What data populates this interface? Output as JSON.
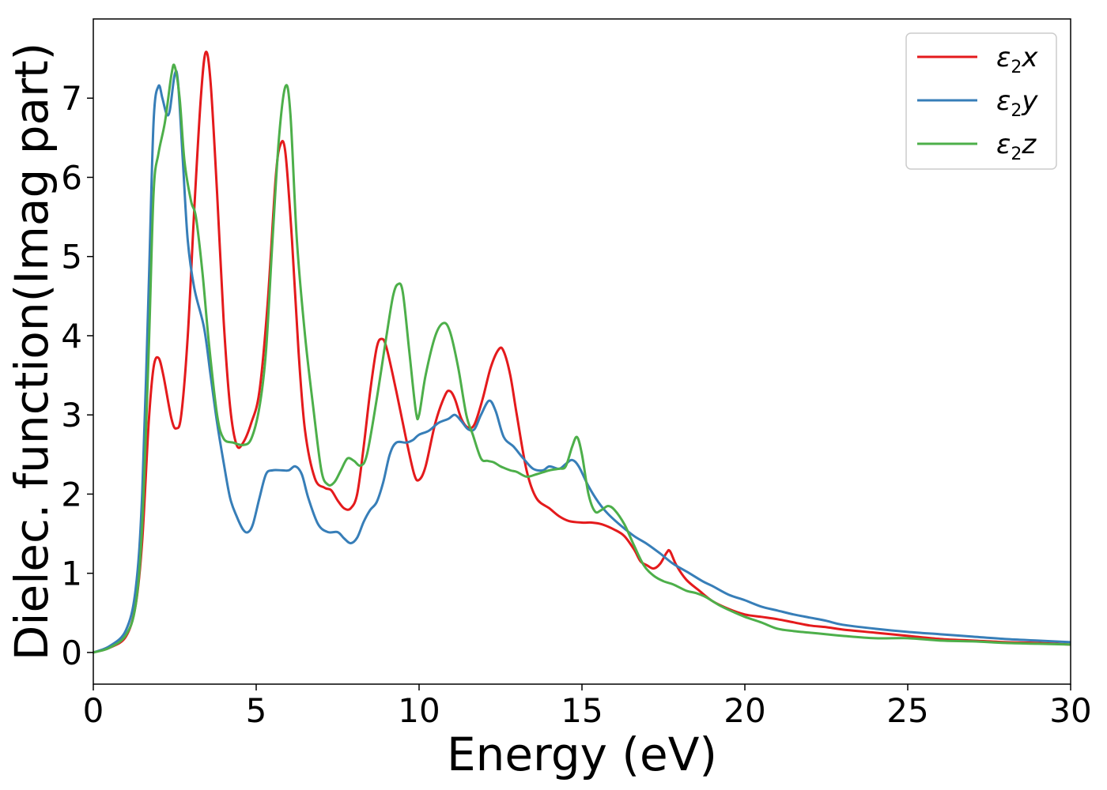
{
  "chart_data": {
    "type": "line",
    "xlabel": "Energy (eV)",
    "ylabel": "Dielec. function(Imag part)",
    "xlim": [
      0,
      30
    ],
    "ylim": [
      -0.4,
      8.0
    ],
    "xticks": [
      0,
      5,
      10,
      15,
      20,
      25,
      30
    ],
    "yticks": [
      0,
      1,
      2,
      3,
      4,
      5,
      6,
      7
    ],
    "grid": false,
    "legend_position": "top-right",
    "series": [
      {
        "name": "ε2x",
        "label_main": "ε",
        "label_sub": "2",
        "label_tail": "x",
        "color": "#e41a1c",
        "points": [
          [
            0,
            0
          ],
          [
            0.5,
            0.06
          ],
          [
            1.0,
            0.2
          ],
          [
            1.3,
            0.6
          ],
          [
            1.5,
            1.4
          ],
          [
            1.7,
            2.9
          ],
          [
            1.85,
            3.6
          ],
          [
            2.0,
            3.72
          ],
          [
            2.15,
            3.5
          ],
          [
            2.4,
            2.95
          ],
          [
            2.55,
            2.83
          ],
          [
            2.7,
            3.0
          ],
          [
            2.9,
            4.0
          ],
          [
            3.1,
            5.6
          ],
          [
            3.3,
            7.0
          ],
          [
            3.45,
            7.58
          ],
          [
            3.6,
            7.2
          ],
          [
            3.8,
            5.8
          ],
          [
            4.0,
            4.2
          ],
          [
            4.2,
            3.1
          ],
          [
            4.4,
            2.62
          ],
          [
            4.6,
            2.65
          ],
          [
            4.85,
            2.9
          ],
          [
            5.1,
            3.3
          ],
          [
            5.35,
            4.4
          ],
          [
            5.6,
            6.0
          ],
          [
            5.75,
            6.42
          ],
          [
            5.9,
            6.3
          ],
          [
            6.1,
            5.2
          ],
          [
            6.3,
            3.8
          ],
          [
            6.5,
            2.8
          ],
          [
            6.8,
            2.2
          ],
          [
            7.1,
            2.08
          ],
          [
            7.3,
            2.05
          ],
          [
            7.5,
            1.92
          ],
          [
            7.7,
            1.82
          ],
          [
            7.9,
            1.82
          ],
          [
            8.1,
            2.0
          ],
          [
            8.3,
            2.6
          ],
          [
            8.5,
            3.3
          ],
          [
            8.7,
            3.85
          ],
          [
            8.85,
            3.96
          ],
          [
            9.0,
            3.85
          ],
          [
            9.3,
            3.3
          ],
          [
            9.6,
            2.7
          ],
          [
            9.85,
            2.25
          ],
          [
            10.0,
            2.18
          ],
          [
            10.2,
            2.35
          ],
          [
            10.5,
            2.9
          ],
          [
            10.8,
            3.25
          ],
          [
            10.95,
            3.3
          ],
          [
            11.1,
            3.2
          ],
          [
            11.3,
            2.95
          ],
          [
            11.5,
            2.84
          ],
          [
            11.7,
            2.88
          ],
          [
            11.95,
            3.2
          ],
          [
            12.2,
            3.6
          ],
          [
            12.45,
            3.83
          ],
          [
            12.6,
            3.8
          ],
          [
            12.8,
            3.5
          ],
          [
            13.0,
            3.0
          ],
          [
            13.3,
            2.3
          ],
          [
            13.6,
            1.95
          ],
          [
            14.0,
            1.82
          ],
          [
            14.3,
            1.72
          ],
          [
            14.6,
            1.66
          ],
          [
            15.0,
            1.64
          ],
          [
            15.3,
            1.64
          ],
          [
            15.6,
            1.62
          ],
          [
            16.0,
            1.55
          ],
          [
            16.3,
            1.47
          ],
          [
            16.6,
            1.3
          ],
          [
            16.8,
            1.15
          ],
          [
            17.0,
            1.1
          ],
          [
            17.2,
            1.06
          ],
          [
            17.4,
            1.12
          ],
          [
            17.6,
            1.26
          ],
          [
            17.7,
            1.28
          ],
          [
            17.9,
            1.1
          ],
          [
            18.2,
            0.92
          ],
          [
            18.6,
            0.78
          ],
          [
            19.0,
            0.65
          ],
          [
            19.5,
            0.55
          ],
          [
            20.0,
            0.48
          ],
          [
            20.5,
            0.45
          ],
          [
            21.0,
            0.42
          ],
          [
            21.5,
            0.38
          ],
          [
            22.0,
            0.34
          ],
          [
            22.5,
            0.32
          ],
          [
            23.0,
            0.29
          ],
          [
            24.0,
            0.25
          ],
          [
            25.0,
            0.21
          ],
          [
            26.0,
            0.17
          ],
          [
            27.0,
            0.15
          ],
          [
            28.0,
            0.13
          ],
          [
            29.0,
            0.12
          ],
          [
            30.0,
            0.1
          ]
        ]
      },
      {
        "name": "ε2y",
        "label_main": "ε",
        "label_sub": "2",
        "label_tail": "y",
        "color": "#377eb8",
        "points": [
          [
            0,
            0
          ],
          [
            0.5,
            0.08
          ],
          [
            1.0,
            0.28
          ],
          [
            1.3,
            0.8
          ],
          [
            1.5,
            2.0
          ],
          [
            1.7,
            4.6
          ],
          [
            1.85,
            6.7
          ],
          [
            2.0,
            7.15
          ],
          [
            2.12,
            7.0
          ],
          [
            2.25,
            6.8
          ],
          [
            2.35,
            6.85
          ],
          [
            2.5,
            7.3
          ],
          [
            2.6,
            7.2
          ],
          [
            2.75,
            6.2
          ],
          [
            2.9,
            5.2
          ],
          [
            3.1,
            4.6
          ],
          [
            3.4,
            4.1
          ],
          [
            3.6,
            3.5
          ],
          [
            3.8,
            2.9
          ],
          [
            4.0,
            2.4
          ],
          [
            4.2,
            1.95
          ],
          [
            4.4,
            1.72
          ],
          [
            4.6,
            1.55
          ],
          [
            4.75,
            1.52
          ],
          [
            4.9,
            1.62
          ],
          [
            5.1,
            1.95
          ],
          [
            5.3,
            2.25
          ],
          [
            5.5,
            2.3
          ],
          [
            5.8,
            2.3
          ],
          [
            6.0,
            2.3
          ],
          [
            6.2,
            2.35
          ],
          [
            6.4,
            2.25
          ],
          [
            6.6,
            1.95
          ],
          [
            6.9,
            1.62
          ],
          [
            7.2,
            1.52
          ],
          [
            7.5,
            1.52
          ],
          [
            7.7,
            1.44
          ],
          [
            7.9,
            1.38
          ],
          [
            8.1,
            1.45
          ],
          [
            8.3,
            1.65
          ],
          [
            8.5,
            1.8
          ],
          [
            8.7,
            1.9
          ],
          [
            8.9,
            2.15
          ],
          [
            9.1,
            2.5
          ],
          [
            9.3,
            2.65
          ],
          [
            9.6,
            2.65
          ],
          [
            9.8,
            2.68
          ],
          [
            10.0,
            2.75
          ],
          [
            10.3,
            2.8
          ],
          [
            10.6,
            2.9
          ],
          [
            10.9,
            2.95
          ],
          [
            11.1,
            3.0
          ],
          [
            11.3,
            2.92
          ],
          [
            11.5,
            2.82
          ],
          [
            11.7,
            2.82
          ],
          [
            11.9,
            3.0
          ],
          [
            12.15,
            3.18
          ],
          [
            12.35,
            3.05
          ],
          [
            12.6,
            2.72
          ],
          [
            12.9,
            2.6
          ],
          [
            13.2,
            2.45
          ],
          [
            13.5,
            2.32
          ],
          [
            13.8,
            2.3
          ],
          [
            14.0,
            2.35
          ],
          [
            14.3,
            2.32
          ],
          [
            14.5,
            2.38
          ],
          [
            14.7,
            2.43
          ],
          [
            14.9,
            2.35
          ],
          [
            15.2,
            2.1
          ],
          [
            15.5,
            1.9
          ],
          [
            15.8,
            1.75
          ],
          [
            16.2,
            1.6
          ],
          [
            16.6,
            1.47
          ],
          [
            17.0,
            1.37
          ],
          [
            17.4,
            1.25
          ],
          [
            17.8,
            1.12
          ],
          [
            18.3,
            1.0
          ],
          [
            18.7,
            0.9
          ],
          [
            19.0,
            0.84
          ],
          [
            19.5,
            0.73
          ],
          [
            20.0,
            0.66
          ],
          [
            20.5,
            0.58
          ],
          [
            21.0,
            0.53
          ],
          [
            21.5,
            0.48
          ],
          [
            22.0,
            0.44
          ],
          [
            22.5,
            0.4
          ],
          [
            23.0,
            0.35
          ],
          [
            24.0,
            0.3
          ],
          [
            25.0,
            0.26
          ],
          [
            26.0,
            0.23
          ],
          [
            27.0,
            0.2
          ],
          [
            28.0,
            0.17
          ],
          [
            29.0,
            0.15
          ],
          [
            30.0,
            0.13
          ]
        ]
      },
      {
        "name": "ε2z",
        "label_main": "ε",
        "label_sub": "2",
        "label_tail": "z",
        "color": "#4daf4a",
        "points": [
          [
            0,
            0
          ],
          [
            0.5,
            0.06
          ],
          [
            1.0,
            0.22
          ],
          [
            1.3,
            0.6
          ],
          [
            1.5,
            1.6
          ],
          [
            1.7,
            3.8
          ],
          [
            1.85,
            5.8
          ],
          [
            2.0,
            6.3
          ],
          [
            2.2,
            6.7
          ],
          [
            2.4,
            7.3
          ],
          [
            2.5,
            7.4
          ],
          [
            2.65,
            7.0
          ],
          [
            2.8,
            6.2
          ],
          [
            3.0,
            5.7
          ],
          [
            3.15,
            5.5
          ],
          [
            3.35,
            4.8
          ],
          [
            3.55,
            3.9
          ],
          [
            3.8,
            3.0
          ],
          [
            4.0,
            2.7
          ],
          [
            4.3,
            2.65
          ],
          [
            4.6,
            2.62
          ],
          [
            4.85,
            2.7
          ],
          [
            5.1,
            3.1
          ],
          [
            5.3,
            3.8
          ],
          [
            5.5,
            5.2
          ],
          [
            5.7,
            6.5
          ],
          [
            5.9,
            7.15
          ],
          [
            6.05,
            6.8
          ],
          [
            6.25,
            5.2
          ],
          [
            6.5,
            4.0
          ],
          [
            6.75,
            3.1
          ],
          [
            7.0,
            2.3
          ],
          [
            7.2,
            2.12
          ],
          [
            7.4,
            2.15
          ],
          [
            7.6,
            2.3
          ],
          [
            7.8,
            2.45
          ],
          [
            8.0,
            2.42
          ],
          [
            8.2,
            2.36
          ],
          [
            8.4,
            2.5
          ],
          [
            8.7,
            3.2
          ],
          [
            9.0,
            4.0
          ],
          [
            9.2,
            4.5
          ],
          [
            9.35,
            4.65
          ],
          [
            9.5,
            4.55
          ],
          [
            9.7,
            3.8
          ],
          [
            9.9,
            3.05
          ],
          [
            10.0,
            3.0
          ],
          [
            10.2,
            3.5
          ],
          [
            10.5,
            4.0
          ],
          [
            10.75,
            4.16
          ],
          [
            10.95,
            4.05
          ],
          [
            11.2,
            3.6
          ],
          [
            11.45,
            3.0
          ],
          [
            11.65,
            2.75
          ],
          [
            11.9,
            2.45
          ],
          [
            12.1,
            2.42
          ],
          [
            12.3,
            2.4
          ],
          [
            12.5,
            2.35
          ],
          [
            12.8,
            2.3
          ],
          [
            13.0,
            2.28
          ],
          [
            13.3,
            2.22
          ],
          [
            13.6,
            2.25
          ],
          [
            14.0,
            2.3
          ],
          [
            14.3,
            2.32
          ],
          [
            14.5,
            2.35
          ],
          [
            14.7,
            2.6
          ],
          [
            14.85,
            2.72
          ],
          [
            15.0,
            2.5
          ],
          [
            15.2,
            2.0
          ],
          [
            15.4,
            1.78
          ],
          [
            15.6,
            1.8
          ],
          [
            15.8,
            1.85
          ],
          [
            16.0,
            1.8
          ],
          [
            16.3,
            1.62
          ],
          [
            16.6,
            1.35
          ],
          [
            16.9,
            1.1
          ],
          [
            17.2,
            0.97
          ],
          [
            17.5,
            0.9
          ],
          [
            17.8,
            0.86
          ],
          [
            18.2,
            0.78
          ],
          [
            18.5,
            0.75
          ],
          [
            18.8,
            0.7
          ],
          [
            19.2,
            0.6
          ],
          [
            19.6,
            0.52
          ],
          [
            20.0,
            0.45
          ],
          [
            20.5,
            0.38
          ],
          [
            21.0,
            0.3
          ],
          [
            21.5,
            0.27
          ],
          [
            22.0,
            0.25
          ],
          [
            22.5,
            0.23
          ],
          [
            23.0,
            0.21
          ],
          [
            24.0,
            0.18
          ],
          [
            25.0,
            0.18
          ],
          [
            26.0,
            0.15
          ],
          [
            27.0,
            0.14
          ],
          [
            28.0,
            0.12
          ],
          [
            29.0,
            0.11
          ],
          [
            30.0,
            0.1
          ]
        ]
      }
    ]
  }
}
